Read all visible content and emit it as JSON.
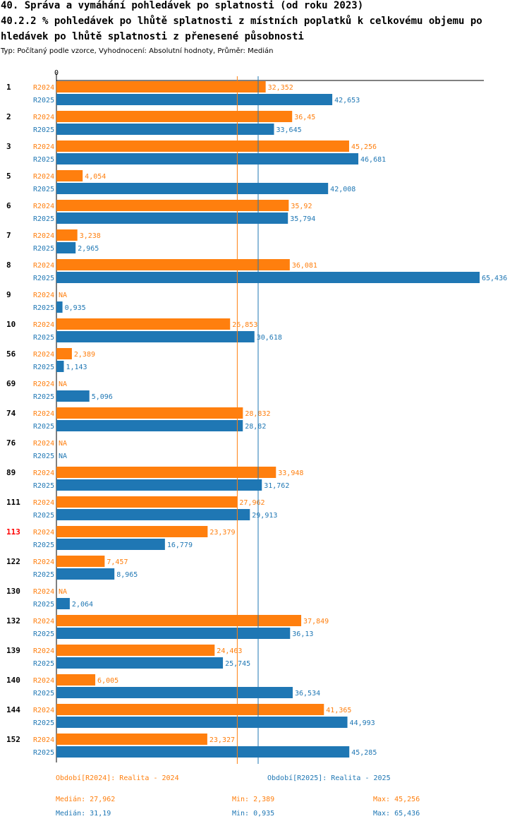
{
  "header": {
    "title1": "40. Správa a vymáhání pohledávek po splatnosti (od roku 2023)",
    "title2a": "40.2.2 % pohledávek po lhůtě splatnosti z místních poplatků k celkovému objemu po",
    "title2b": "hledávek po lhůtě splatnosti z přenesené působnosti",
    "subtitle": "Typ: Počítaný podle vzorce, Vyhodnocení: Absolutní hodnoty, Průměr: Medián"
  },
  "colors": {
    "r2024": "#ff7f0e",
    "r2025": "#1f77b4",
    "highlight": "#ff0000"
  },
  "chart_data": {
    "type": "bar",
    "orientation": "horizontal",
    "axis_zero_label": "0",
    "xlim": [
      0,
      65.436
    ],
    "highlight_category": "113",
    "categories": [
      "1",
      "2",
      "3",
      "5",
      "6",
      "7",
      "8",
      "9",
      "10",
      "56",
      "69",
      "74",
      "76",
      "89",
      "111",
      "113",
      "122",
      "130",
      "132",
      "139",
      "140",
      "144",
      "152"
    ],
    "series": [
      {
        "name": "R2024",
        "values": [
          32.352,
          36.45,
          45.256,
          4.054,
          35.92,
          3.238,
          36.081,
          null,
          26.853,
          2.389,
          null,
          28.832,
          null,
          33.948,
          27.962,
          23.379,
          7.457,
          null,
          37.849,
          24.463,
          6.005,
          41.365,
          23.327
        ],
        "labels": [
          "32,352",
          "36,45",
          "45,256",
          "4,054",
          "35,92",
          "3,238",
          "36,081",
          "NA",
          "26,853",
          "2,389",
          "NA",
          "28,832",
          "NA",
          "33,948",
          "27,962",
          "23,379",
          "7,457",
          "NA",
          "37,849",
          "24,463",
          "6,005",
          "41,365",
          "23,327"
        ],
        "median": 27.962
      },
      {
        "name": "R2025",
        "values": [
          42.653,
          33.645,
          46.681,
          42.008,
          35.794,
          2.965,
          65.436,
          0.935,
          30.618,
          1.143,
          5.096,
          28.82,
          null,
          31.762,
          29.913,
          16.779,
          8.965,
          2.064,
          36.13,
          25.745,
          36.534,
          44.993,
          45.285
        ],
        "labels": [
          "42,653",
          "33,645",
          "46,681",
          "42,008",
          "35,794",
          "2,965",
          "65,436",
          "0,935",
          "30,618",
          "1,143",
          "5,096",
          "28,82",
          "NA",
          "31,762",
          "29,913",
          "16,779",
          "8,965",
          "2,064",
          "36,13",
          "25,745",
          "36,534",
          "44,993",
          "45,285"
        ],
        "median": 31.19
      }
    ]
  },
  "footer": {
    "legend_2024": "Období[R2024]: Realita - 2024",
    "legend_2025": "Období[R2025]: Realita - 2025",
    "median_2024": "Medián: 27,962",
    "min_2024": "Min: 2,389",
    "max_2024": "Max: 45,256",
    "median_2025": "Medián: 31,19",
    "min_2025": "Min: 0,935",
    "max_2025": "Max: 65,436"
  }
}
